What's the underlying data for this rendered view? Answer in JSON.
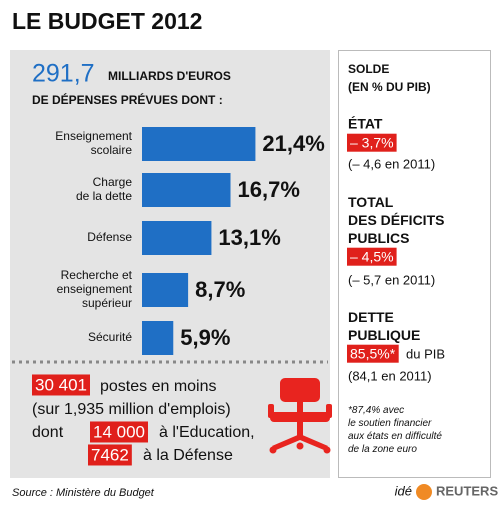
{
  "title": "LE BUDGET 2012",
  "header": {
    "amount": "291,7",
    "line1": "MILLIARDS D'EUROS",
    "line2": "DE DÉPENSES PRÉVUES DONT :"
  },
  "chart_data": {
    "type": "bar",
    "categories": [
      "Enseignement\nscolaire",
      "Charge\nde la dette",
      "Défense",
      "Recherche et\nenseignement\nsupérieur",
      "Sécurité"
    ],
    "values": [
      21.4,
      16.7,
      13.1,
      8.7,
      5.9
    ],
    "value_labels": [
      "21,4%",
      "16,7%",
      "13,1%",
      "8,7%",
      "5,9%"
    ],
    "color": "#1f6fc5"
  },
  "jobs": {
    "cut": "30 401",
    "cut_text": "postes en moins",
    "total_text": "(sur 1,935 million d'emplois)",
    "dont": "dont",
    "education": "14 000",
    "education_text": "à l'Education,",
    "defense": "7462",
    "defense_text": "à la Défense"
  },
  "balance": {
    "heading": "SOLDE\n(EN % DU PIB)",
    "state_label": "ÉTAT",
    "state_value": "– 3,7%",
    "state_prev": "(– 4,6 en 2011)",
    "deficit_label": "TOTAL\nDES DÉFICITS\nPUBLICS",
    "deficit_value": "– 4,5%",
    "deficit_prev": "(– 5,7 en 2011)",
    "debt_label": "DETTE\nPUBLIQUE",
    "debt_value": "85,5%*",
    "debt_unit": "du PIB",
    "debt_prev": "(84,1 en 2011)",
    "footnote": "*87,4% avec\nle soutien financier\naux états en difficulté\nde la zone euro"
  },
  "source": "Source : Ministère du Budget",
  "logo": {
    "left": "idé",
    "right": "REUTERS"
  }
}
